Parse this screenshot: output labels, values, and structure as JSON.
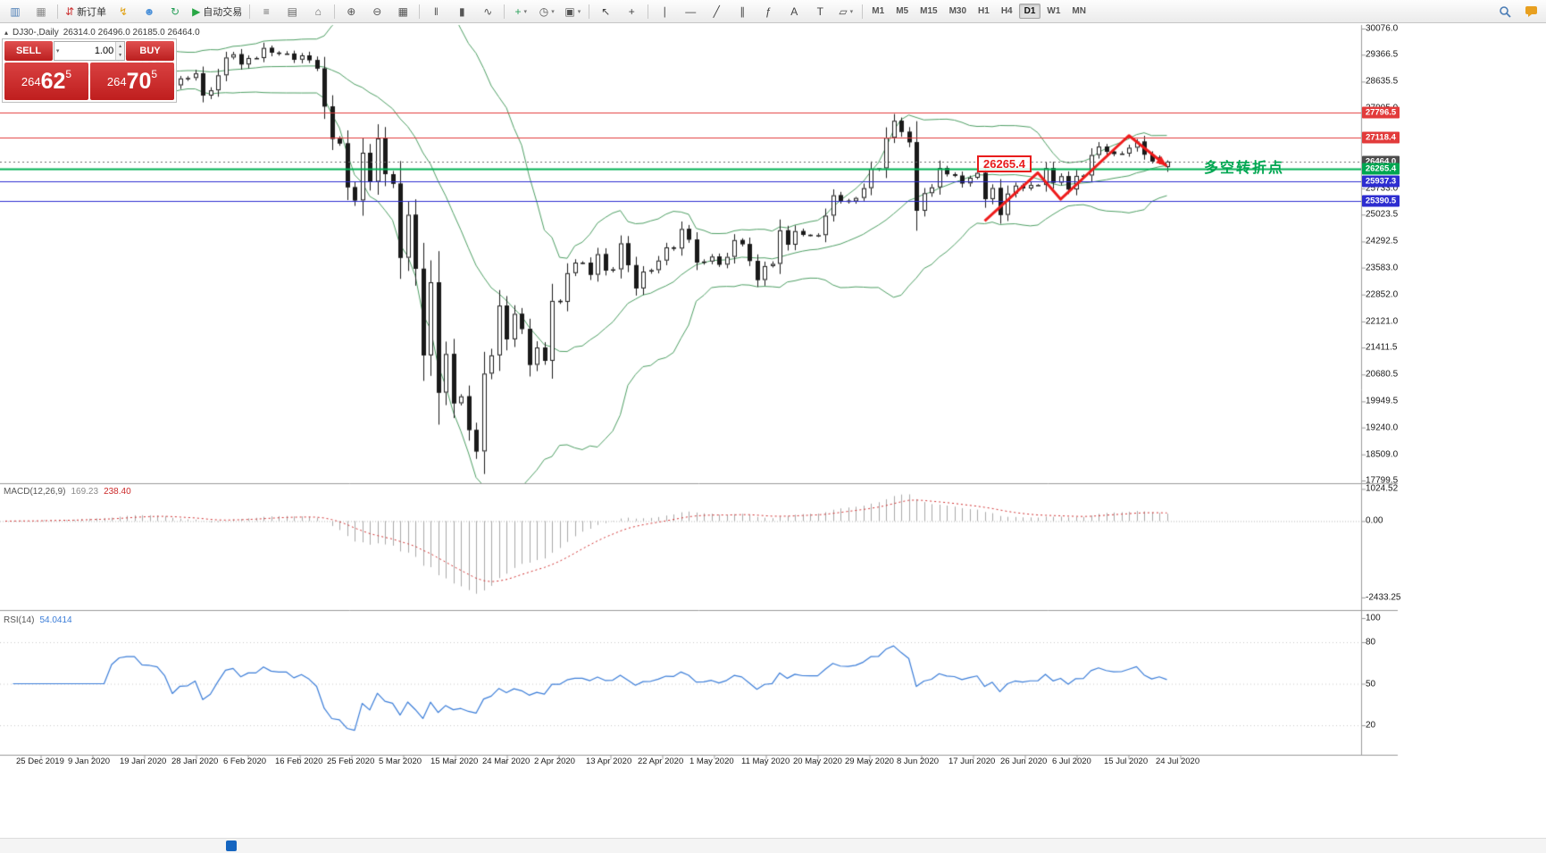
{
  "toolbar": {
    "items": [
      {
        "name": "new-chart-button",
        "glyph": "▥",
        "color": "#4a7cb5"
      },
      {
        "name": "profiles-button",
        "glyph": "▦",
        "color": "#8a8a8a"
      },
      {
        "type": "sep"
      },
      {
        "name": "new-order-button",
        "glyph": "⇵",
        "color": "#cc3333",
        "label": "新订单"
      },
      {
        "name": "one-click-trading-button",
        "glyph": "↯",
        "color": "#e0a010"
      },
      {
        "name": "community-button",
        "glyph": "☻",
        "color": "#4a90d9"
      },
      {
        "name": "refresh-button",
        "glyph": "↻",
        "color": "#2aa05a"
      },
      {
        "name": "auto-trading-button",
        "glyph": "▶",
        "color": "#28a745",
        "label": "自动交易"
      },
      {
        "type": "sep"
      },
      {
        "name": "market-watch-button",
        "glyph": "≡",
        "color": "#666666"
      },
      {
        "name": "data-window-button",
        "glyph": "▤",
        "color": "#666666"
      },
      {
        "name": "navigator-button",
        "glyph": "⌂",
        "color": "#666666"
      },
      {
        "type": "sep"
      },
      {
        "name": "zoom-in-button",
        "glyph": "⊕",
        "color": "#555555"
      },
      {
        "name": "zoom-out-button",
        "glyph": "⊖",
        "color": "#555555"
      },
      {
        "name": "tile-windows-button",
        "glyph": "▦",
        "color": "#555555"
      },
      {
        "type": "sep"
      },
      {
        "name": "bar-chart-button",
        "glyph": "‖",
        "color": "#555555"
      },
      {
        "name": "candlestick-chart-button",
        "glyph": "▮",
        "color": "#555555"
      },
      {
        "name": "line-chart-button",
        "glyph": "∿",
        "color": "#555555"
      },
      {
        "type": "sep"
      },
      {
        "name": "add-indicator-button",
        "glyph": "+",
        "color": "#2aa05a",
        "caret": true
      },
      {
        "name": "period-button",
        "glyph": "◷",
        "color": "#555555",
        "caret": true
      },
      {
        "name": "templates-button",
        "glyph": "▣",
        "color": "#555555",
        "caret": true
      },
      {
        "type": "sep"
      },
      {
        "name": "cursor-button",
        "glyph": "↖",
        "color": "#444444"
      },
      {
        "name": "crosshair-button",
        "glyph": "+",
        "color": "#444444"
      },
      {
        "type": "sep"
      },
      {
        "name": "vertical-line-button",
        "glyph": "∣",
        "color": "#444444"
      },
      {
        "name": "horizontal-line-button",
        "glyph": "―",
        "color": "#444444"
      },
      {
        "name": "trendline-button",
        "glyph": "╱",
        "color": "#444444"
      },
      {
        "name": "channel-button",
        "glyph": "∥",
        "color": "#444444"
      },
      {
        "name": "fibonacci-button",
        "glyph": "ƒ",
        "color": "#444444"
      },
      {
        "name": "text-button",
        "glyph": "A",
        "color": "#444444"
      },
      {
        "name": "label-button",
        "glyph": "T",
        "color": "#444444"
      },
      {
        "name": "shapes-button",
        "glyph": "▱",
        "color": "#444444",
        "caret": true
      },
      {
        "type": "sep"
      }
    ],
    "timeframes": [
      "M1",
      "M5",
      "M15",
      "M30",
      "H1",
      "H4",
      "D1",
      "W1",
      "MN"
    ],
    "active_timeframe": "D1"
  },
  "chart_header": {
    "symbol_period": "DJ30-,Daily",
    "ohlc_text": "26314.0 26496.0 26185.0 26464.0"
  },
  "trade_panel": {
    "sell_label": "SELL",
    "buy_label": "BUY",
    "volume": "1.00",
    "sell_price": "26462.5",
    "buy_price": "26470.5"
  },
  "annotations": {
    "price_label": "26265.4",
    "note_text": "多空转折点"
  },
  "macd_panel": {
    "label": "MACD(12,26,9)",
    "value_main": "169.23",
    "value_signal": "238.40",
    "ticks": [
      "1024.52",
      "0.00",
      "-2433.25"
    ]
  },
  "rsi_panel": {
    "label": "RSI(14)",
    "value": "54.0414",
    "ticks": [
      "100",
      "80",
      "50",
      "20"
    ]
  },
  "colors": {
    "candle_up": "#ffffff",
    "candle_down": "#1a1a1a",
    "candle_outline": "#1a1a1a",
    "macd_hist": "#a9a9a9",
    "macd_signal": "#d03030",
    "rsi_line": "#3b7dd8",
    "grid_gray": "#9a9a9a"
  },
  "chart_data": {
    "type": "candlestick",
    "symbol": "DJ30-",
    "timeframe": "Daily",
    "today_ohlc": [
      26314.0,
      26496.0,
      26185.0,
      26464.0
    ],
    "y_range": [
      17799.5,
      30076.0
    ],
    "y_ticks": [
      30076.0,
      29366.5,
      28635.5,
      27905.0,
      27174.5,
      26444.0,
      25733.0,
      25023.5,
      24292.5,
      23583.0,
      22852.0,
      22121.0,
      21411.5,
      20680.5,
      19949.5,
      19240.0,
      18509.0,
      17799.5
    ],
    "x_labels": [
      "25 Dec 2019",
      "9 Jan 2020",
      "19 Jan 2020",
      "28 Jan 2020",
      "6 Feb 2020",
      "16 Feb 2020",
      "25 Feb 2020",
      "5 Mar 2020",
      "15 Mar 2020",
      "24 Mar 2020",
      "2 Apr 2020",
      "13 Apr 2020",
      "22 Apr 2020",
      "1 May 2020",
      "11 May 2020",
      "20 May 2020",
      "29 May 2020",
      "8 Jun 2020",
      "17 Jun 2020",
      "26 Jun 2020",
      "6 Jul 2020",
      "15 Jul 2020",
      "24 Jul 2020"
    ],
    "closes": [
      28515,
      28621,
      28645,
      28462,
      28538,
      28868,
      28634,
      28703,
      28583,
      28745,
      28956,
      28823,
      28907,
      28939,
      29030,
      29297,
      29348,
      29350,
      29196,
      29186,
      29160,
      28989,
      28535,
      28722,
      28734,
      28859,
      28256,
      28399,
      28807,
      29290,
      29379,
      29102,
      29276,
      29276,
      29551,
      29423,
      29398,
      29398,
      29232,
      29348,
      29219,
      28992,
      27960,
      27081,
      26957,
      25766,
      25409,
      26703,
      25917,
      27090,
      26121,
      25864,
      23851,
      25018,
      23553,
      21200,
      23185,
      20188,
      21237,
      19898,
      20087,
      19173,
      18591,
      20704,
      21200,
      22552,
      21636,
      22327,
      21917,
      20943,
      21413,
      21052,
      22679,
      22653,
      23433,
      23719,
      23719,
      23390,
      23949,
      23504,
      23537,
      24242,
      23650,
      23018,
      23475,
      23515,
      23775,
      24133,
      24101,
      24633,
      24345,
      23723,
      23749,
      23883,
      23664,
      23875,
      24331,
      24221,
      23764,
      23247,
      23625,
      23685,
      24597,
      24206,
      24575,
      24474,
      24465,
      24465,
      24995,
      25548,
      25400,
      25383,
      25475,
      25742,
      26269,
      26281,
      27110,
      27572,
      27272,
      26989,
      25128,
      25605,
      25763,
      26289,
      26119,
      26080,
      25871,
      26024,
      26156,
      25445,
      25745,
      25015,
      25595,
      25812,
      25734,
      25827,
      25827,
      26287,
      25890,
      26067,
      25706,
      26075,
      26085,
      26642,
      26870,
      26734,
      26672,
      26681,
      26840,
      27006,
      26652,
      26470,
      26584,
      26464
    ],
    "hlines": [
      {
        "price": 27796.5,
        "color": "#e23b3b",
        "width": 1,
        "tag": true
      },
      {
        "price": 27118.4,
        "color": "#e23b3b",
        "width": 1,
        "tag": true
      },
      {
        "price": 26464.0,
        "color": "#6b6b6b",
        "width": 1,
        "style": "dotted",
        "tag": true,
        "tag_color": "#4d4d4d"
      },
      {
        "price": 26265.4,
        "color": "#00b254",
        "width": 2,
        "tag": true,
        "tag_color": "#00a651"
      },
      {
        "price": 25937.3,
        "color": "#2d2dd0",
        "width": 1,
        "tag": true
      },
      {
        "price": 25390.5,
        "color": "#2d2dd0",
        "width": 1,
        "tag": true
      }
    ],
    "bollinger": {
      "period": 20,
      "deviation": 2,
      "color": "#4d9e63"
    },
    "trend_annotation": {
      "color": "#ee1c1c",
      "points": [
        [
          129,
          24850
        ],
        [
          136,
          26160
        ],
        [
          139,
          25440
        ],
        [
          148,
          27170
        ],
        [
          153,
          26340
        ]
      ]
    },
    "macd": {
      "params": [
        12,
        26,
        9
      ],
      "main": 169.23,
      "signal": 238.4,
      "range": [
        -2750,
        1150
      ]
    },
    "rsi": {
      "period": 14,
      "value": 54.0414,
      "range": [
        0,
        100
      ],
      "levels": [
        80,
        50,
        20
      ]
    }
  }
}
